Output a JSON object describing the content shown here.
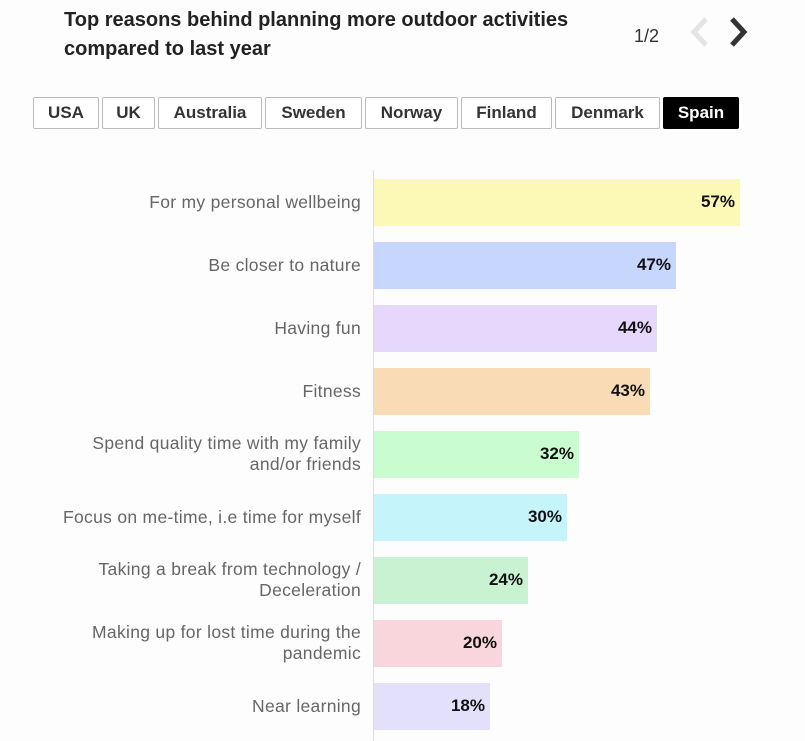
{
  "header": {
    "title": "Top reasons behind planning more outdoor activities compared to last year",
    "pager": "1/2"
  },
  "tabs": [
    {
      "label": "USA",
      "active": false
    },
    {
      "label": "UK",
      "active": false
    },
    {
      "label": "Australia",
      "active": false
    },
    {
      "label": "Sweden",
      "active": false
    },
    {
      "label": "Norway",
      "active": false
    },
    {
      "label": "Finland",
      "active": false
    },
    {
      "label": "Denmark",
      "active": false
    },
    {
      "label": "Spain",
      "active": true
    }
  ],
  "chart_data": {
    "type": "bar",
    "orientation": "horizontal",
    "categories": [
      "For my personal wellbeing",
      "Be closer to nature",
      "Having fun",
      "Fitness",
      "Spend quality time with my family and/or friends",
      "Focus on me-time, i.e time for myself",
      "Taking a break from technology / Deceleration",
      "Making up for lost time during the pandemic",
      "Near learning"
    ],
    "values": [
      57,
      47,
      44,
      43,
      32,
      30,
      24,
      20,
      18
    ],
    "data_labels": [
      "57%",
      "47%",
      "44%",
      "43%",
      "32%",
      "30%",
      "24%",
      "20%",
      "18%"
    ],
    "colors": [
      "#fcf9b7",
      "#c6d6fc",
      "#e6d7fd",
      "#f9dbb6",
      "#c9fccf",
      "#c5f5fb",
      "#c8f2d2",
      "#f8d6db",
      "#e3e0fb"
    ],
    "xlim": [
      0,
      57
    ],
    "grid": false,
    "legend": "none"
  }
}
